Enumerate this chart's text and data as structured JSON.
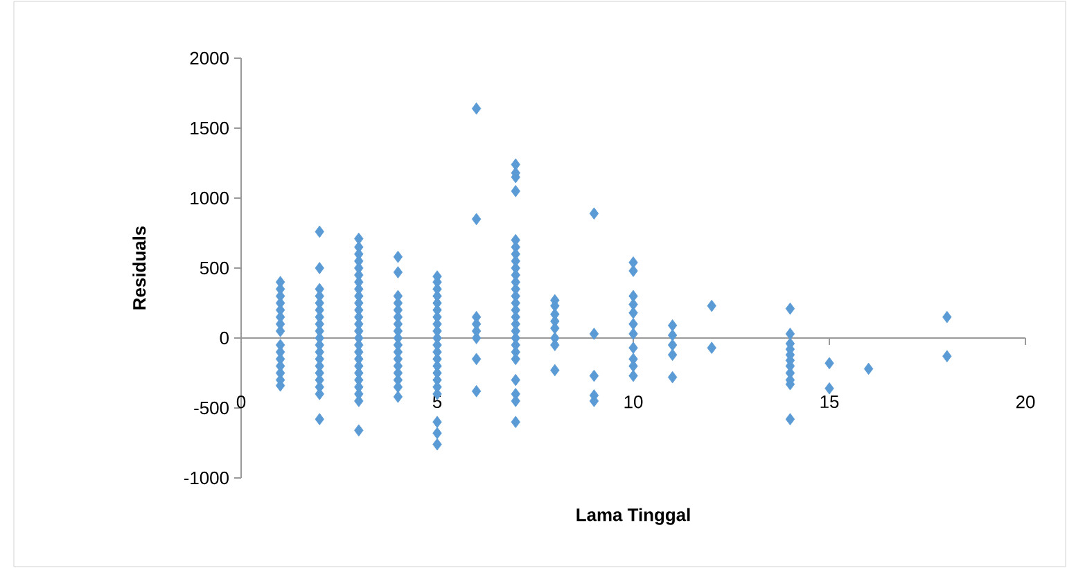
{
  "chart_data": {
    "type": "scatter",
    "xlabel": "Lama Tinggal",
    "ylabel": "Residuals",
    "color": "#5b9bd5",
    "marker": "diamond",
    "xlim": [
      0,
      20
    ],
    "ylim": [
      -1000,
      2000
    ],
    "xticks": [
      0,
      5,
      10,
      15,
      20
    ],
    "yticks": [
      -1000,
      -500,
      0,
      500,
      1000,
      1500,
      2000
    ],
    "x": [
      1,
      1,
      1,
      1,
      1,
      1,
      1,
      1,
      1,
      1,
      1,
      1,
      1,
      1,
      1,
      2,
      2,
      2,
      2,
      2,
      2,
      2,
      2,
      2,
      2,
      2,
      2,
      2,
      2,
      2,
      2,
      2,
      2,
      2,
      3,
      3,
      3,
      3,
      3,
      3,
      3,
      3,
      3,
      3,
      3,
      3,
      3,
      3,
      3,
      3,
      3,
      3,
      3,
      3,
      3,
      3,
      3,
      3,
      3,
      4,
      4,
      4,
      4,
      4,
      4,
      4,
      4,
      4,
      4,
      4,
      4,
      4,
      4,
      4,
      4,
      4,
      5,
      5,
      5,
      5,
      5,
      5,
      5,
      5,
      5,
      5,
      5,
      5,
      5,
      5,
      5,
      5,
      5,
      5,
      5,
      5,
      5,
      6,
      6,
      6,
      6,
      6,
      6,
      6,
      6,
      7,
      7,
      7,
      7,
      7,
      7,
      7,
      7,
      7,
      7,
      7,
      7,
      7,
      7,
      7,
      7,
      7,
      7,
      7,
      7,
      7,
      7,
      7,
      7,
      7,
      7,
      8,
      8,
      8,
      8,
      8,
      8,
      8,
      8,
      9,
      9,
      9,
      9,
      9,
      10,
      10,
      10,
      10,
      10,
      10,
      10,
      10,
      10,
      10,
      10,
      11,
      11,
      11,
      11,
      11,
      12,
      12,
      14,
      14,
      14,
      14,
      14,
      14,
      14,
      14,
      14,
      14,
      14,
      15,
      15,
      16,
      18,
      18
    ],
    "values": [
      400,
      350,
      300,
      250,
      200,
      150,
      100,
      50,
      -50,
      -100,
      -150,
      -200,
      -250,
      -300,
      -340,
      760,
      500,
      350,
      300,
      250,
      200,
      150,
      100,
      50,
      0,
      -50,
      -100,
      -150,
      -200,
      -250,
      -300,
      -350,
      -400,
      -580,
      710,
      650,
      600,
      550,
      500,
      450,
      400,
      350,
      300,
      250,
      200,
      150,
      100,
      50,
      0,
      -50,
      -100,
      -150,
      -200,
      -250,
      -300,
      -350,
      -400,
      -450,
      -660,
      580,
      470,
      300,
      250,
      200,
      150,
      100,
      50,
      0,
      -50,
      -100,
      -150,
      -200,
      -250,
      -300,
      -350,
      -420,
      440,
      400,
      350,
      300,
      250,
      200,
      150,
      100,
      50,
      0,
      -50,
      -100,
      -150,
      -200,
      -250,
      -300,
      -350,
      -400,
      -600,
      -680,
      -760,
      1640,
      850,
      150,
      100,
      50,
      0,
      -150,
      -380,
      1240,
      1180,
      1150,
      1050,
      700,
      650,
      600,
      550,
      500,
      450,
      400,
      350,
      300,
      250,
      200,
      150,
      100,
      50,
      0,
      -50,
      -100,
      -150,
      -300,
      -400,
      -450,
      -600,
      270,
      230,
      170,
      120,
      70,
      0,
      -50,
      -230,
      890,
      30,
      -270,
      -410,
      -450,
      540,
      480,
      300,
      240,
      180,
      100,
      30,
      -70,
      -150,
      -200,
      -270,
      90,
      20,
      -50,
      -120,
      -280,
      230,
      -70,
      210,
      30,
      -40,
      -80,
      -120,
      -160,
      -200,
      -250,
      -300,
      -330,
      -580,
      -180,
      -360,
      -220,
      150,
      -130
    ]
  }
}
